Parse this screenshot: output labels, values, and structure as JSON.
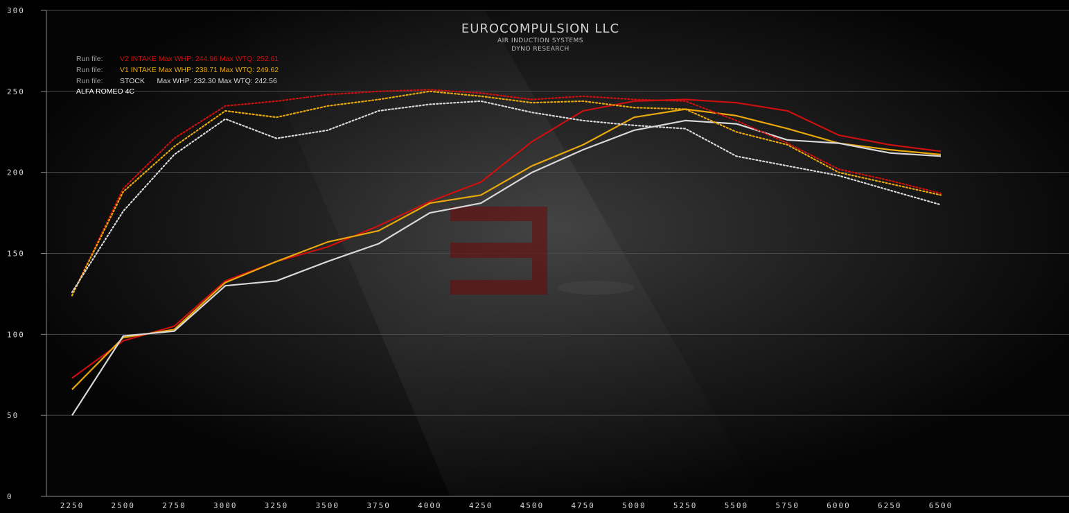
{
  "brand": {
    "title": "EUROCOMPULSION LLC",
    "subtitle_1": "AIR INDUCTION SYSTEMS",
    "subtitle_2": "DYNO RESEARCH"
  },
  "legend": {
    "prefix": "Run file:",
    "entries": [
      {
        "label": "V2 INTAKE Max WHP: 244.96 Max WTQ: 252.61",
        "color": "#cc1010"
      },
      {
        "label": "V1 INTAKE Max WHP: 238.71 Max WTQ: 249.62",
        "color": "#e8a80c"
      },
      {
        "label": "STOCK      Max WHP: 232.30 Max WTQ: 242.56",
        "color": "#d8d8d8"
      }
    ],
    "vehicle": "ALFA ROMEO 4C"
  },
  "watermark": {
    "logo": "E"
  },
  "chart_data": {
    "type": "line",
    "title": "",
    "xlabel": "",
    "ylabel": "",
    "x": [
      2250,
      2500,
      2750,
      3000,
      3250,
      3500,
      3750,
      4000,
      4250,
      4500,
      4750,
      5000,
      5250,
      5500,
      5750,
      6000,
      6250,
      6500
    ],
    "x_tick_labels": [
      "2250",
      "2500",
      "2750",
      "3000",
      "3250",
      "3500",
      "3750",
      "4000",
      "4250",
      "4500",
      "4750",
      "5000",
      "5250",
      "5500",
      "5750",
      "6000",
      "6250",
      "6500"
    ],
    "y_ticks": [
      0,
      50,
      100,
      150,
      200,
      250,
      300
    ],
    "y_tick_labels": [
      "0",
      "50",
      "100",
      "150",
      "200",
      "250",
      "300"
    ],
    "ylim": [
      0,
      300
    ],
    "grid": true,
    "legend_position": "top-left",
    "series": [
      {
        "color": "#cc1010",
        "style": "solid",
        "values": [
          73,
          96,
          105,
          133,
          145,
          154,
          167,
          182,
          194,
          219,
          238,
          244,
          245,
          243,
          238,
          223,
          217,
          213
        ]
      },
      {
        "color": "#e8a80c",
        "style": "solid",
        "values": [
          66,
          98,
          103,
          132,
          145,
          157,
          164,
          181,
          186,
          204,
          217,
          234,
          239,
          235,
          227,
          218,
          214,
          211
        ]
      },
      {
        "color": "#d8d8d8",
        "style": "solid",
        "values": [
          50,
          99,
          102,
          130,
          133,
          145,
          156,
          175,
          181,
          200,
          214,
          226,
          232,
          230,
          220,
          218,
          212,
          210
        ]
      },
      {
        "color": "#cc1010",
        "style": "dotted",
        "values": [
          124,
          190,
          221,
          241,
          244,
          248,
          250,
          251,
          249,
          245,
          247,
          245,
          244,
          232,
          218,
          202,
          195,
          187
        ]
      },
      {
        "color": "#e8a80c",
        "style": "dotted",
        "values": [
          124,
          188,
          216,
          238,
          234,
          241,
          245,
          250,
          247,
          243,
          244,
          240,
          239,
          225,
          217,
          200,
          193,
          186
        ]
      },
      {
        "color": "#d8d8d8",
        "style": "dotted",
        "values": [
          126,
          176,
          211,
          233,
          221,
          226,
          238,
          242,
          244,
          237,
          232,
          229,
          227,
          210,
          204,
          198,
          189,
          180
        ]
      }
    ]
  }
}
